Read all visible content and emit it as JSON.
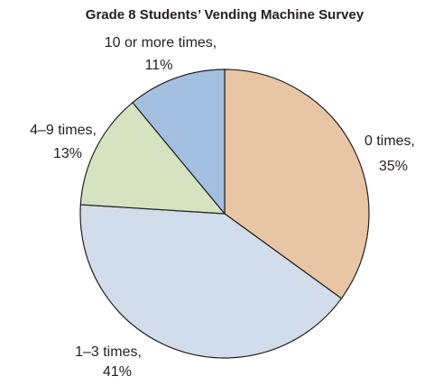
{
  "chart_data": {
    "type": "pie",
    "title": "Grade 8 Students’ Vending Machine Survey",
    "categories": [
      "0 times,",
      "1–3 times,",
      "4–9 times,",
      "10 or more times,"
    ],
    "values": [
      35,
      41,
      13,
      11
    ],
    "value_labels": [
      "35%",
      "41%",
      "13%",
      "11%"
    ],
    "colors": [
      "#e8c5a4",
      "#d1ddea",
      "#d5e3c0",
      "#a4c0e1"
    ]
  }
}
